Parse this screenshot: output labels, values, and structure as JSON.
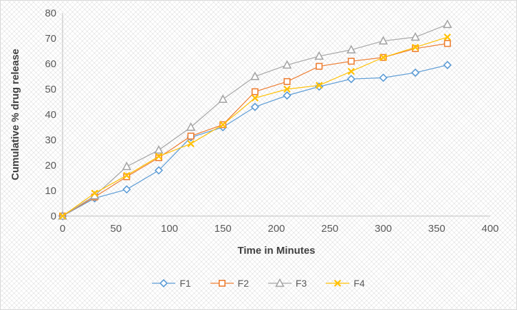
{
  "figure": {
    "border_color": "#d9d9d9",
    "background": "#ffffff"
  },
  "chart_data": {
    "type": "line",
    "title": "",
    "xlabel": "Time in Minutes",
    "ylabel": "Cumulative % drug release",
    "xlim": [
      0,
      400
    ],
    "ylim": [
      0,
      80
    ],
    "xticks": [
      0,
      50,
      100,
      150,
      200,
      250,
      300,
      350,
      400
    ],
    "yticks": [
      0,
      10,
      20,
      30,
      40,
      50,
      60,
      70,
      80
    ],
    "grid": false,
    "legend_position": "bottom",
    "axis_color": "#bfbfbf",
    "tick_label_color": "#595959",
    "axis_title_color": "#404040",
    "x": [
      0,
      30,
      60,
      90,
      120,
      150,
      180,
      210,
      240,
      270,
      300,
      330,
      360
    ],
    "series": [
      {
        "name": "F1",
        "marker": "diamond",
        "color": "#5B9BD5",
        "values": [
          0,
          7,
          10.5,
          18,
          31,
          35,
          43,
          47.5,
          51,
          54,
          54.5,
          56.5,
          59.5
        ]
      },
      {
        "name": "F2",
        "marker": "square",
        "color": "#ED7D31",
        "values": [
          0,
          7.5,
          15.5,
          23,
          31.5,
          36,
          49,
          53,
          59,
          61,
          62.5,
          66,
          68
        ]
      },
      {
        "name": "F3",
        "marker": "triangle",
        "color": "#A5A5A5",
        "values": [
          0,
          8,
          19.5,
          26,
          35,
          46,
          55,
          59.5,
          63,
          65.5,
          69,
          70.5,
          75.5
        ]
      },
      {
        "name": "F4",
        "marker": "x",
        "color": "#FFC000",
        "values": [
          0,
          9,
          16,
          23.5,
          28.5,
          36,
          46.5,
          50,
          51.5,
          57,
          62.5,
          66.5,
          70.5
        ]
      }
    ]
  }
}
